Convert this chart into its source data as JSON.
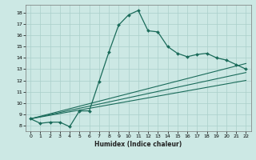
{
  "xlabel": "Humidex (Indice chaleur)",
  "bg_color": "#cce8e4",
  "grid_color": "#aacfca",
  "line_color": "#1a6b5a",
  "xlim": [
    -0.5,
    22.5
  ],
  "ylim": [
    7.5,
    18.7
  ],
  "xticks": [
    0,
    1,
    2,
    3,
    4,
    5,
    6,
    7,
    8,
    9,
    10,
    11,
    12,
    13,
    14,
    15,
    16,
    17,
    18,
    19,
    20,
    21,
    22
  ],
  "yticks": [
    8,
    9,
    10,
    11,
    12,
    13,
    14,
    15,
    16,
    17,
    18
  ],
  "main_line": {
    "x": [
      0,
      1,
      2,
      3,
      4,
      5,
      6,
      7,
      8,
      9,
      10,
      11,
      12,
      13,
      14,
      15,
      16,
      17,
      18,
      19,
      20,
      21,
      22
    ],
    "y": [
      8.6,
      8.2,
      8.3,
      8.3,
      7.9,
      9.3,
      9.3,
      11.9,
      14.5,
      16.9,
      17.8,
      18.2,
      16.4,
      16.3,
      15.0,
      14.4,
      14.1,
      14.3,
      14.4,
      14.0,
      13.8,
      13.4,
      13.0
    ]
  },
  "envelope_lines": [
    {
      "x": [
        0,
        22
      ],
      "y": [
        8.6,
        13.5
      ]
    },
    {
      "x": [
        0,
        22
      ],
      "y": [
        8.6,
        12.7
      ]
    },
    {
      "x": [
        0,
        22
      ],
      "y": [
        8.6,
        12.0
      ]
    }
  ]
}
